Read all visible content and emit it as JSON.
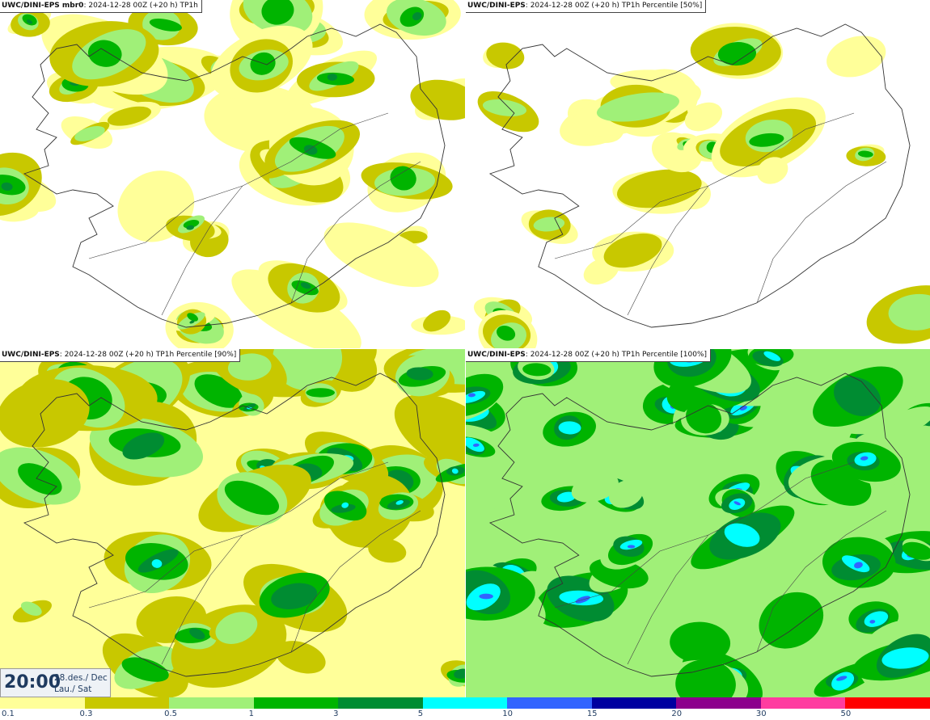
{
  "panels": [
    {
      "model": "UWC/DINI-EPS mbr0",
      "sep": ": ",
      "run": "2024-12-28 00Z (+20 h)",
      "product": "TP1h",
      "wet": 0.55
    },
    {
      "model": "UWC/DINI-EPS",
      "sep": ": ",
      "run": "2024-12-28 00Z (+20 h)",
      "product": "TP1h Percentile [50%]",
      "wet": 0.35
    },
    {
      "model": "UWC/DINI-EPS",
      "sep": ": ",
      "run": "2024-12-28 00Z (+20 h)",
      "product": "TP1h Percentile [90%]",
      "wet": 0.75
    },
    {
      "model": "UWC/DINI-EPS",
      "sep": ": ",
      "run": "2024-12-28 00Z (+20 h)",
      "product": "TP1h Percentile [100%]",
      "wet": 0.95
    }
  ],
  "time": {
    "clock": "20:00",
    "date": "28.des./ Dec",
    "day": "Lau./ Sat"
  },
  "legend": {
    "colors": [
      "#ffff99",
      "#c8c800",
      "#a0f078",
      "#00b400",
      "#008c32",
      "#00ffff",
      "#3264ff",
      "#0000a0",
      "#8c008c",
      "#ff3ca0",
      "#ff0000"
    ],
    "labels": [
      "0.1",
      "0.3",
      "0.5",
      "1",
      "3",
      "5",
      "10",
      "15",
      "20",
      "30",
      "50"
    ]
  }
}
